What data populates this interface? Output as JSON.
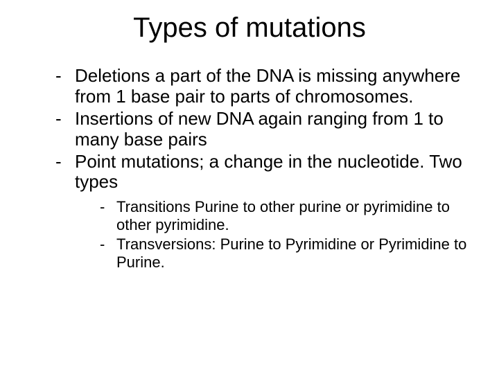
{
  "slide": {
    "title": "Types of mutations",
    "title_fontsize": 40,
    "body_fontsize_l1": 26,
    "body_fontsize_l2": 22,
    "text_color": "#000000",
    "background_color": "#ffffff",
    "bullet_char": "-",
    "bullets": [
      {
        "text": "Deletions a part of the DNA is missing anywhere from 1 base pair to parts of chromosomes."
      },
      {
        "text": "Insertions of new DNA again ranging from 1 to many base pairs"
      },
      {
        "text": "Point mutations; a change in the nucleotide. Two types",
        "children": [
          {
            "text": "Transitions Purine to other purine or pyrimidine to other pyrimidine."
          },
          {
            "text": "Transversions: Purine to Pyrimidine or Pyrimidine to Purine."
          }
        ]
      }
    ]
  }
}
